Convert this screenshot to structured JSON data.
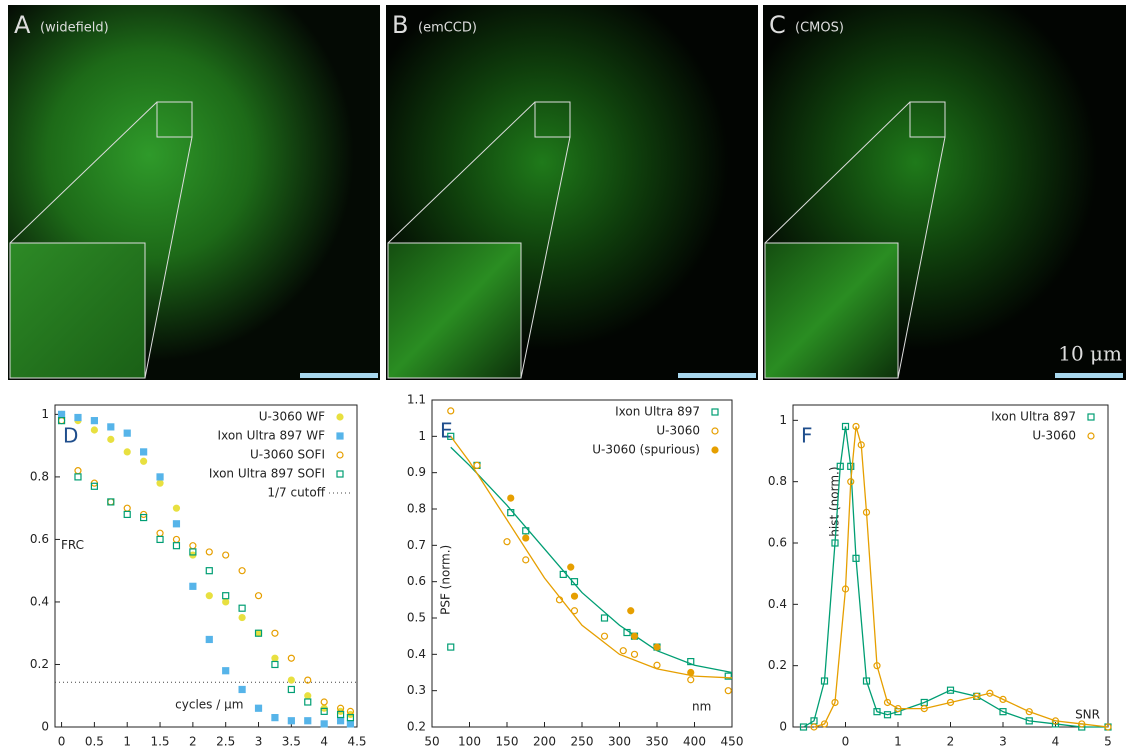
{
  "images": [
    {
      "letter": "A",
      "caption": "(widefield)"
    },
    {
      "letter": "B",
      "caption": "(emCCD)"
    },
    {
      "letter": "C",
      "caption": "(CMOS)"
    }
  ],
  "scale_label": "10 μm",
  "chart_data": [
    {
      "type": "scatter",
      "letter": "D",
      "ylabel": "FRC",
      "xlabel": "cycles / µm",
      "xlim": [
        -0.1,
        4.5
      ],
      "ylim": [
        0,
        1.03
      ],
      "xticks": [
        0,
        0.5,
        1,
        1.5,
        2,
        2.5,
        3,
        3.5,
        4,
        4.5
      ],
      "yticks": [
        0,
        0.2,
        0.4,
        0.6,
        0.8,
        1
      ],
      "legend": "upper right",
      "series": [
        {
          "name": "U-3060 WF",
          "color": "#e8e040",
          "marker": "circle",
          "filled": true,
          "x": [
            0,
            0.25,
            0.5,
            0.75,
            1,
            1.25,
            1.5,
            1.75,
            2,
            2.25,
            2.5,
            2.75,
            3,
            3.25,
            3.5,
            3.75,
            4,
            4.25,
            4.4
          ],
          "values": [
            1,
            0.98,
            0.95,
            0.92,
            0.88,
            0.85,
            0.78,
            0.7,
            0.55,
            0.42,
            0.4,
            0.35,
            0.3,
            0.22,
            0.15,
            0.1,
            0.06,
            0.05,
            0.04
          ]
        },
        {
          "name": "Ixon Ultra 897 WF",
          "color": "#56b4e9",
          "marker": "square",
          "filled": true,
          "x": [
            0,
            0.25,
            0.5,
            0.75,
            1,
            1.25,
            1.5,
            1.75,
            2,
            2.25,
            2.5,
            2.75,
            3,
            3.25,
            3.5,
            3.75,
            4,
            4.25,
            4.4
          ],
          "values": [
            1,
            0.99,
            0.98,
            0.96,
            0.94,
            0.88,
            0.8,
            0.65,
            0.45,
            0.28,
            0.18,
            0.12,
            0.06,
            0.03,
            0.02,
            0.02,
            0.01,
            0.02,
            0.01
          ]
        },
        {
          "name": "U-3060 SOFI",
          "color": "#e69f00",
          "marker": "circle",
          "filled": false,
          "x": [
            0,
            0.25,
            0.5,
            0.75,
            1,
            1.25,
            1.5,
            1.75,
            2,
            2.25,
            2.5,
            2.75,
            3,
            3.25,
            3.5,
            3.75,
            4,
            4.25,
            4.4
          ],
          "values": [
            0.98,
            0.82,
            0.78,
            0.72,
            0.7,
            0.68,
            0.62,
            0.6,
            0.58,
            0.56,
            0.55,
            0.5,
            0.42,
            0.3,
            0.22,
            0.15,
            0.08,
            0.06,
            0.05
          ]
        },
        {
          "name": "Ixon Ultra 897 SOFI",
          "color": "#009e73",
          "marker": "square",
          "filled": false,
          "x": [
            0,
            0.25,
            0.5,
            0.75,
            1,
            1.25,
            1.5,
            1.75,
            2,
            2.25,
            2.5,
            2.75,
            3,
            3.25,
            3.5,
            3.75,
            4,
            4.25,
            4.4
          ],
          "values": [
            0.98,
            0.8,
            0.77,
            0.72,
            0.68,
            0.67,
            0.6,
            0.58,
            0.56,
            0.5,
            0.42,
            0.38,
            0.3,
            0.2,
            0.12,
            0.08,
            0.05,
            0.04,
            0.03
          ]
        }
      ],
      "cutoff": {
        "name": "1/7 cutoff",
        "value": 0.143
      }
    },
    {
      "type": "scatter",
      "letter": "E",
      "ylabel": "PSF (norm.)",
      "xlabel": "nm",
      "xlim": [
        50,
        450
      ],
      "ylim": [
        0.2,
        1.1
      ],
      "xticks": [
        50,
        100,
        150,
        200,
        250,
        300,
        350,
        400,
        450
      ],
      "yticks": [
        0.2,
        0.3,
        0.4,
        0.5,
        0.6,
        0.7,
        0.8,
        0.9,
        1,
        1.1
      ],
      "legend": "upper right",
      "series": [
        {
          "name": "Ixon Ultra 897",
          "color": "#009e73",
          "marker": "square",
          "filled": false,
          "x": [
            75,
            75,
            110,
            155,
            175,
            225,
            240,
            280,
            310,
            320,
            350,
            395,
            445
          ],
          "values": [
            1,
            0.42,
            0.92,
            0.79,
            0.74,
            0.62,
            0.6,
            0.5,
            0.46,
            0.45,
            0.42,
            0.38,
            0.34
          ],
          "fit": {
            "x": [
              75,
              100,
              150,
              200,
              250,
              300,
              350,
              400,
              450
            ],
            "values": [
              0.97,
              0.92,
              0.81,
              0.69,
              0.57,
              0.48,
              0.41,
              0.37,
              0.35
            ]
          }
        },
        {
          "name": "U-3060",
          "color": "#e69f00",
          "marker": "circle",
          "filled": false,
          "x": [
            75,
            110,
            150,
            175,
            220,
            240,
            280,
            305,
            320,
            350,
            395,
            445
          ],
          "values": [
            1.07,
            0.92,
            0.71,
            0.66,
            0.55,
            0.52,
            0.45,
            0.41,
            0.4,
            0.37,
            0.33,
            0.3
          ],
          "fit": {
            "x": [
              75,
              100,
              150,
              200,
              250,
              300,
              350,
              400,
              450
            ],
            "values": [
              1,
              0.93,
              0.77,
              0.61,
              0.48,
              0.4,
              0.36,
              0.34,
              0.335
            ]
          }
        },
        {
          "name": "U-3060 (spurious)",
          "color": "#e69f00",
          "marker": "circle",
          "filled": true,
          "x": [
            155,
            175,
            235,
            240,
            315,
            320,
            350,
            395
          ],
          "values": [
            0.83,
            0.72,
            0.64,
            0.56,
            0.52,
            0.45,
            0.42,
            0.35
          ]
        }
      ]
    },
    {
      "type": "line",
      "letter": "F",
      "ylabel": "hist (norm.)",
      "xlabel": "SNR",
      "xlim": [
        -1,
        5
      ],
      "ylim": [
        0,
        1.05
      ],
      "xticks": [
        0,
        1,
        2,
        3,
        4,
        5
      ],
      "yticks": [
        0,
        0.2,
        0.4,
        0.6,
        0.8,
        1
      ],
      "legend": "upper right",
      "series": [
        {
          "name": "Ixon Ultra 897",
          "color": "#009e73",
          "marker": "square",
          "filled": false,
          "x": [
            -0.8,
            -0.6,
            -0.4,
            -0.2,
            -0.1,
            0,
            0.1,
            0.2,
            0.4,
            0.6,
            0.8,
            1,
            1.5,
            2,
            2.5,
            3,
            3.5,
            4,
            4.5,
            5
          ],
          "values": [
            0,
            0.02,
            0.15,
            0.6,
            0.85,
            0.98,
            0.85,
            0.55,
            0.15,
            0.05,
            0.04,
            0.05,
            0.08,
            0.12,
            0.1,
            0.05,
            0.02,
            0.01,
            0,
            0
          ]
        },
        {
          "name": "U-3060",
          "color": "#e69f00",
          "marker": "circle",
          "filled": false,
          "x": [
            -0.6,
            -0.4,
            -0.2,
            0,
            0.1,
            0.2,
            0.3,
            0.4,
            0.6,
            0.8,
            1,
            1.5,
            2,
            2.5,
            2.75,
            3,
            3.5,
            4,
            4.5,
            5
          ],
          "values": [
            0,
            0.01,
            0.08,
            0.45,
            0.8,
            0.98,
            0.92,
            0.7,
            0.2,
            0.08,
            0.06,
            0.06,
            0.08,
            0.1,
            0.11,
            0.09,
            0.05,
            0.02,
            0.01,
            0
          ]
        }
      ]
    }
  ]
}
